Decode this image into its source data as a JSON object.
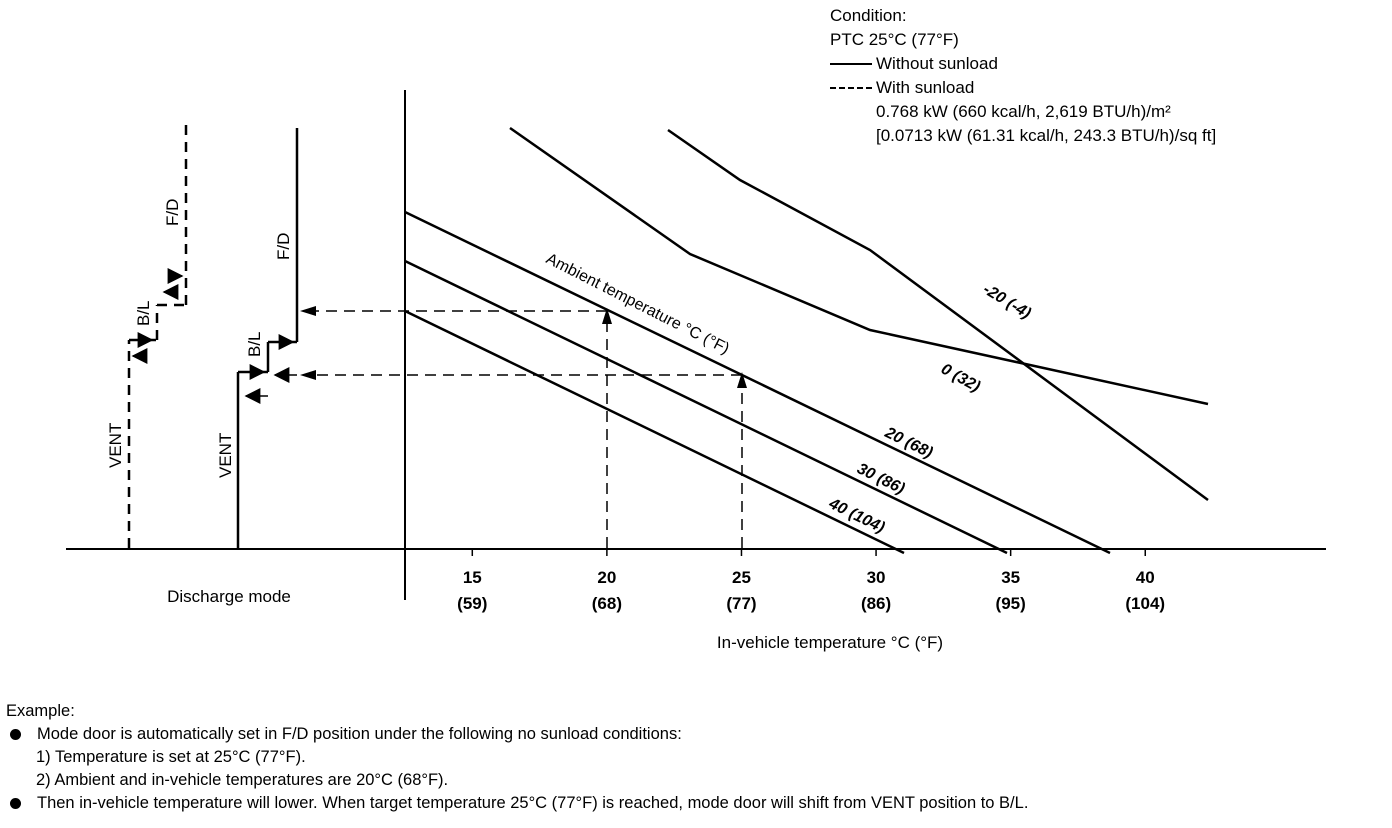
{
  "condition": {
    "heading": "Condition:",
    "ptc": "PTC 25°C (77°F)",
    "legend_solid": "Without sunload",
    "legend_dashed": "With sunload",
    "sunload_line1": "0.768 kW (660 kcal/h, 2,619 BTU/h)/m²",
    "sunload_line2": "[0.0713 kW (61.31 kcal/h, 243.3 BTU/h)/sq ft]"
  },
  "chart_data": {
    "type": "line",
    "xlabel": "In-vehicle temperature °C (°F)",
    "x_ticks": [
      {
        "value": 15,
        "c": "15",
        "f": "(59)"
      },
      {
        "value": 20,
        "c": "20",
        "f": "(68)"
      },
      {
        "value": 25,
        "c": "25",
        "f": "(77)"
      },
      {
        "value": 30,
        "c": "30",
        "f": "(86)"
      },
      {
        "value": 35,
        "c": "35",
        "f": "(95)"
      },
      {
        "value": 40,
        "c": "40",
        "f": "(104)"
      }
    ],
    "xlim": [
      12.5,
      43
    ],
    "ylim": [
      0,
      1
    ],
    "series_title": "Ambient temperature °C (°F)",
    "series": [
      {
        "name": "-20 (-4)",
        "x": [
          16.5,
          23.5,
          28.5,
          42
        ],
        "y": [
          0.0,
          0.29,
          0.41,
          0.8
        ]
      },
      {
        "name": "0 (32)",
        "x": [
          22.5,
          25,
          42
        ],
        "y": [
          0.0,
          0.14,
          0.76
        ]
      },
      {
        "name": "20 (68)",
        "x": [
          12.5,
          38.5
        ],
        "y": [
          0.45,
          1.0
        ]
      },
      {
        "name": "30 (86)",
        "x": [
          12.5,
          35
        ],
        "y": [
          0.56,
          1.0
        ]
      },
      {
        "name": "40 (104)",
        "x": [
          12.5,
          31
        ],
        "y": [
          0.67,
          1.0
        ]
      }
    ],
    "discharge_mode": {
      "label": "Discharge mode",
      "modes": [
        "VENT",
        "B/L",
        "F/D"
      ],
      "without_sunload_label": "VENT B/L F/D",
      "with_sunload_label": "VENT B/L F/D"
    },
    "example_points": [
      {
        "x": 20,
        "series": "20 (68)",
        "mode": "F/D"
      },
      {
        "x": 25,
        "series": "20 (68)",
        "mode": "B/L"
      }
    ]
  },
  "notes": {
    "heading": "Example:",
    "bullet1": "Mode door is automatically set in F/D position under the following no sunload conditions:",
    "sub1": "1)  Temperature is set at 25°C (77°F).",
    "sub2": "2)  Ambient and in-vehicle temperatures are 20°C (68°F).",
    "bullet2": "Then in-vehicle temperature will lower. When target temperature 25°C (77°F) is reached, mode door will shift from VENT position to B/L."
  }
}
